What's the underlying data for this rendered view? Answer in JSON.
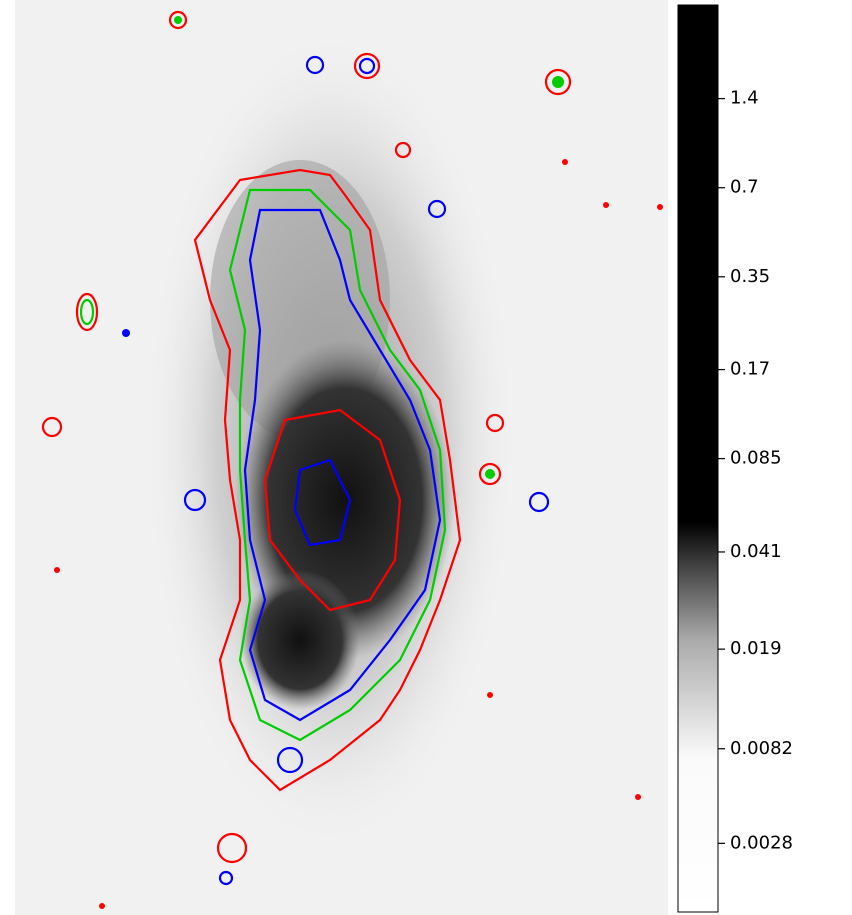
{
  "chart_data": {
    "type": "image",
    "colorbar": {
      "scale": "asinh",
      "linear_width": 0.005,
      "lim": [
        0,
        2.9
      ],
      "ticks": [
        1.4,
        0.7,
        0.35,
        0.17,
        0.085,
        0.041,
        0.019,
        0.0082,
        0.0028
      ]
    }
  }
}
